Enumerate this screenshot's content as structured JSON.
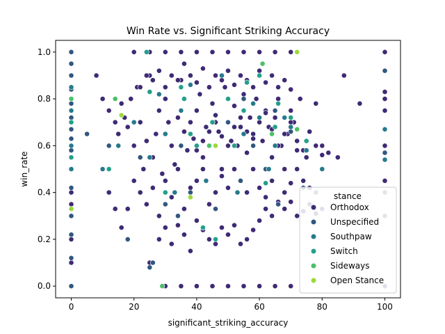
{
  "chart_data": {
    "type": "scatter",
    "title": "Win Rate vs. Significant Striking Accuracy",
    "xlabel": "significant_striking_accuracy",
    "ylabel": "win_rate",
    "xlim": [
      -5,
      105
    ],
    "ylim": [
      -0.05,
      1.05
    ],
    "xticks": [
      0,
      20,
      40,
      60,
      80,
      100
    ],
    "yticks": [
      0.0,
      0.2,
      0.4,
      0.6,
      0.8,
      1.0
    ],
    "xtick_labels": [
      "0",
      "20",
      "40",
      "60",
      "80",
      "100"
    ],
    "ytick_labels": [
      "0.0",
      "0.2",
      "0.4",
      "0.6",
      "0.8",
      "1.0"
    ],
    "grid": false,
    "legend": {
      "title": "stance",
      "placement": "lower-right",
      "entries": [
        {
          "name": "Orthodox",
          "color": "#3e2a74"
        },
        {
          "name": "Unspecified",
          "color": "#31577f"
        },
        {
          "name": "Southpaw",
          "color": "#267a8c"
        },
        {
          "name": "Switch",
          "color": "#23a08a"
        },
        {
          "name": "Sideways",
          "color": "#4cc068"
        },
        {
          "name": "Open Stance",
          "color": "#9dd93b"
        }
      ]
    },
    "series": [
      {
        "name": "Orthodox",
        "x": [
          0,
          0,
          0,
          0,
          0,
          0,
          0,
          0,
          0,
          0,
          0,
          0,
          100,
          100,
          100,
          100,
          100,
          100,
          100,
          8,
          10,
          12,
          14,
          15,
          16,
          17,
          18,
          19,
          20,
          21,
          22,
          23,
          24,
          25,
          26,
          27,
          28,
          29,
          30,
          31,
          32,
          33,
          34,
          35,
          36,
          37,
          38,
          39,
          40,
          41,
          42,
          43,
          44,
          45,
          46,
          47,
          48,
          49,
          50,
          51,
          52,
          53,
          54,
          55,
          56,
          57,
          58,
          59,
          60,
          61,
          62,
          63,
          64,
          65,
          66,
          67,
          68,
          69,
          70,
          71,
          72,
          73,
          75,
          76,
          78,
          80,
          82,
          85,
          87,
          92,
          10,
          12,
          14,
          16,
          18,
          20,
          22,
          24,
          26,
          28,
          30,
          32,
          34,
          36,
          38,
          40,
          42,
          44,
          46,
          48,
          50,
          52,
          54,
          56,
          58,
          60,
          62,
          64,
          66,
          68,
          70,
          72,
          74,
          76,
          22,
          24,
          26,
          28,
          30,
          32,
          34,
          36,
          38,
          40,
          42,
          44,
          46,
          48,
          50,
          52,
          54,
          56,
          58,
          60,
          62,
          64,
          66,
          68,
          70,
          28,
          30,
          32,
          34,
          36,
          38,
          40,
          42,
          44,
          46,
          48,
          50,
          52,
          54,
          56,
          58,
          60,
          62,
          64,
          66,
          68,
          70,
          72,
          74,
          76,
          78,
          80,
          25,
          30,
          35,
          40,
          45,
          50,
          55,
          60,
          65,
          70,
          20,
          25,
          30,
          35,
          40,
          45,
          50,
          55,
          60,
          65,
          70,
          40,
          42,
          44,
          46,
          48,
          50,
          52,
          54,
          56,
          58,
          60,
          62,
          64,
          66,
          68,
          70,
          72,
          74,
          76,
          78,
          80
        ],
        "y": [
          0.0,
          0.1,
          0.2,
          0.3,
          0.4,
          0.5,
          0.6,
          0.7,
          0.8,
          0.9,
          1.0,
          0.35,
          1.0,
          0.83,
          0.8,
          0.75,
          0.6,
          0.45,
          0.0,
          0.9,
          0.8,
          0.75,
          0.7,
          0.65,
          0.78,
          0.72,
          0.68,
          0.8,
          0.6,
          0.85,
          0.7,
          0.5,
          0.62,
          0.9,
          0.55,
          0.65,
          0.75,
          0.48,
          0.8,
          0.7,
          0.6,
          0.52,
          0.72,
          0.88,
          0.66,
          0.58,
          0.7,
          0.63,
          0.75,
          0.82,
          0.55,
          0.68,
          0.6,
          0.78,
          0.73,
          0.66,
          0.5,
          0.85,
          0.7,
          0.62,
          0.77,
          0.6,
          0.68,
          0.82,
          0.57,
          0.72,
          0.65,
          0.8,
          0.7,
          0.62,
          0.75,
          0.68,
          0.55,
          0.72,
          0.8,
          0.6,
          0.5,
          0.65,
          0.75,
          0.7,
          0.58,
          0.8,
          0.55,
          0.66,
          0.78,
          0.6,
          0.57,
          0.55,
          0.9,
          0.78,
          0.5,
          0.4,
          0.33,
          0.25,
          0.33,
          0.45,
          0.4,
          0.35,
          0.42,
          0.3,
          0.45,
          0.38,
          0.5,
          0.33,
          0.42,
          0.45,
          0.5,
          0.35,
          0.4,
          0.47,
          0.42,
          0.5,
          0.45,
          0.4,
          0.5,
          0.42,
          0.38,
          0.45,
          0.36,
          0.4,
          0.44,
          0.5,
          0.45,
          0.42,
          0.85,
          0.9,
          0.88,
          0.92,
          0.85,
          0.9,
          0.88,
          0.95,
          0.9,
          0.87,
          0.93,
          0.85,
          0.9,
          0.88,
          0.92,
          0.86,
          0.9,
          0.88,
          0.85,
          0.92,
          0.87,
          0.9,
          0.85,
          0.88,
          0.84,
          0.2,
          0.25,
          0.18,
          0.26,
          0.22,
          0.15,
          0.28,
          0.24,
          0.2,
          0.18,
          0.25,
          0.22,
          0.26,
          0.18,
          0.2,
          0.24,
          0.28,
          0.33,
          0.3,
          0.35,
          0.33,
          0.36,
          0.3,
          0.32,
          0.35,
          0.31,
          0.33,
          0.1,
          0.0,
          0.0,
          0.0,
          0.0,
          0.0,
          0.0,
          0.0,
          0.0,
          0.0,
          1.0,
          1.0,
          1.0,
          1.0,
          1.0,
          1.0,
          1.0,
          1.0,
          1.0,
          1.0,
          1.0,
          0.58,
          0.62,
          0.66,
          0.7,
          0.64,
          0.6,
          0.68,
          0.72,
          0.66,
          0.63,
          0.7,
          0.74,
          0.67,
          0.6,
          0.65,
          0.7,
          0.62,
          0.58,
          0.66,
          0.6,
          0.56
        ]
      },
      {
        "name": "Unspecified",
        "x": [
          0,
          0,
          0,
          0,
          0,
          0,
          0,
          0,
          0,
          0,
          0,
          0,
          0,
          0,
          0,
          100,
          100,
          100,
          100,
          5,
          12,
          18,
          22,
          26,
          30,
          34,
          38,
          42,
          46,
          50,
          54,
          58,
          62,
          66,
          70,
          74,
          78,
          80,
          35,
          45,
          55,
          65,
          25
        ],
        "y": [
          0.0,
          0.12,
          0.22,
          0.3,
          0.42,
          0.5,
          0.58,
          0.63,
          0.67,
          0.72,
          0.78,
          0.84,
          0.9,
          0.95,
          1.0,
          0.57,
          0.4,
          0.3,
          0.92,
          0.65,
          0.6,
          0.2,
          0.55,
          0.1,
          0.35,
          0.3,
          0.4,
          0.25,
          0.33,
          0.7,
          0.45,
          0.6,
          0.5,
          0.35,
          0.66,
          0.42,
          0.4,
          0.5,
          0.6,
          0.7,
          0.8,
          0.75,
          0.08
        ]
      },
      {
        "name": "Southpaw",
        "x": [
          0,
          0,
          0,
          0,
          100,
          100,
          10,
          15,
          20,
          25,
          30,
          35,
          40,
          45,
          50,
          55,
          60,
          65,
          70,
          75,
          80,
          28,
          38,
          48,
          58,
          68,
          33,
          43,
          53,
          63
        ],
        "y": [
          0.5,
          0.6,
          0.75,
          0.85,
          0.54,
          0.67,
          0.5,
          0.6,
          0.7,
          0.55,
          0.65,
          0.75,
          0.6,
          0.7,
          0.8,
          0.65,
          0.72,
          0.6,
          0.68,
          0.58,
          0.5,
          0.82,
          0.86,
          0.9,
          0.78,
          0.72,
          0.4,
          0.45,
          0.4,
          0.5
        ]
      },
      {
        "name": "Switch",
        "x": [
          0,
          0,
          12,
          25,
          30,
          35,
          40,
          45,
          50,
          55,
          60,
          65,
          70,
          75,
          24,
          36,
          46,
          56,
          66,
          42,
          52,
          62,
          38
        ],
        "y": [
          0.55,
          0.7,
          0.5,
          0.83,
          0.4,
          0.85,
          0.6,
          0.7,
          0.8,
          0.75,
          0.9,
          0.68,
          0.72,
          0.62,
          1.0,
          0.8,
          0.2,
          0.87,
          0.78,
          0.25,
          0.6,
          0.44,
          0.65
        ]
      },
      {
        "name": "Sideways",
        "x": [
          0,
          14,
          29,
          44,
          61,
          64,
          72
        ],
        "y": [
          0.8,
          0.8,
          0.0,
          0.6,
          0.95,
          0.65,
          0.67
        ]
      },
      {
        "name": "Open Stance",
        "x": [
          0,
          16,
          38,
          46,
          72
        ],
        "y": [
          0.33,
          0.73,
          0.38,
          0.6,
          1.0
        ]
      }
    ]
  }
}
